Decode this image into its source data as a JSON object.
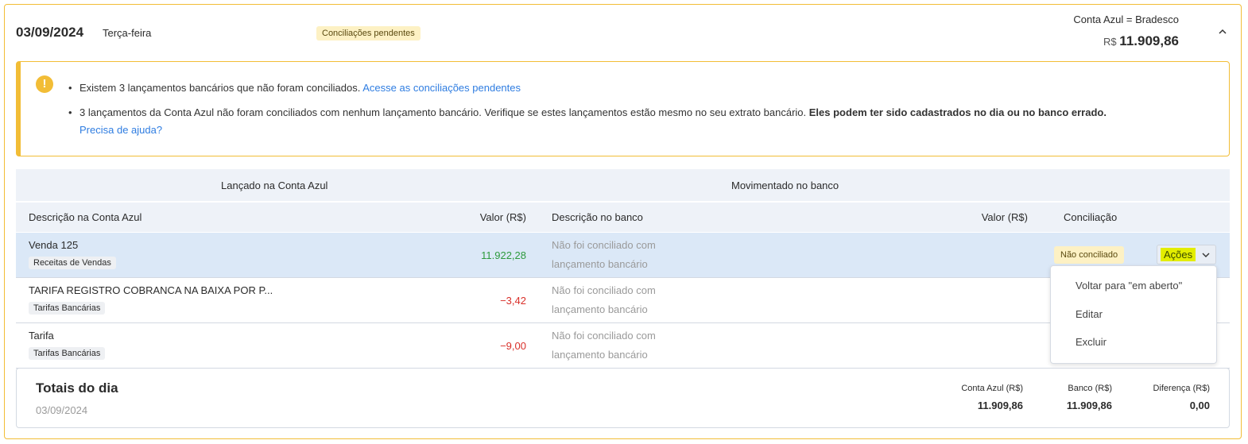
{
  "header": {
    "date": "03/09/2024",
    "weekday": "Terça-feira",
    "status_badge": "Conciliações pendentes",
    "account": "Conta Azul = Bradesco",
    "currency": "R$",
    "balance": "11.909,86"
  },
  "alert": {
    "line1": "Existem 3 lançamentos bancários que não foram conciliados.",
    "line1_link": "Acesse as conciliações pendentes",
    "line2": "3 lançamentos da Conta Azul não foram conciliados com nenhum lançamento bancário. Verifique se estes lançamentos estão mesmo no seu extrato bancário.",
    "line2_bold": "Eles podem ter sido cadastrados no dia ou no banco errado.",
    "help_link": "Precisa de ajuda?"
  },
  "table": {
    "group1": "Lançado na Conta Azul",
    "group2": "Movimentado no banco",
    "columns": [
      "Descrição na Conta Azul",
      "Valor (R$)",
      "Descrição no banco",
      "Valor (R$)",
      "Conciliação"
    ],
    "rows": [
      {
        "desc": "Venda 125",
        "category": "Receitas de Vendas",
        "value": "11.922,28",
        "bank_desc1": "Não foi conciliado com",
        "bank_desc2": "lançamento bancário",
        "status": "Não conciliado",
        "actions": "Ações"
      },
      {
        "desc": "TARIFA REGISTRO COBRANCA NA BAIXA POR P...",
        "category": "Tarifas Bancárias",
        "value": "−3,42",
        "bank_desc1": "Não foi conciliado com",
        "bank_desc2": "lançamento bancário"
      },
      {
        "desc": "Tarifa",
        "category": "Tarifas Bancárias",
        "value": "−9,00",
        "bank_desc1": "Não foi conciliado com",
        "bank_desc2": "lançamento bancário"
      }
    ]
  },
  "menu": [
    "Voltar para \"em aberto\"",
    "Editar",
    "Excluir"
  ],
  "totals": {
    "title": "Totais do dia",
    "date": "03/09/2024",
    "labels": [
      "Conta Azul (R$)",
      "Banco (R$)",
      "Diferença (R$)"
    ],
    "values": [
      "11.909,86",
      "11.909,86",
      "0,00"
    ]
  },
  "colors": {
    "border": "#f2bd36",
    "positive": "#2e9a3e",
    "negative": "#d9302a",
    "link": "#2f7de1",
    "highlight": "#e3ed00"
  }
}
